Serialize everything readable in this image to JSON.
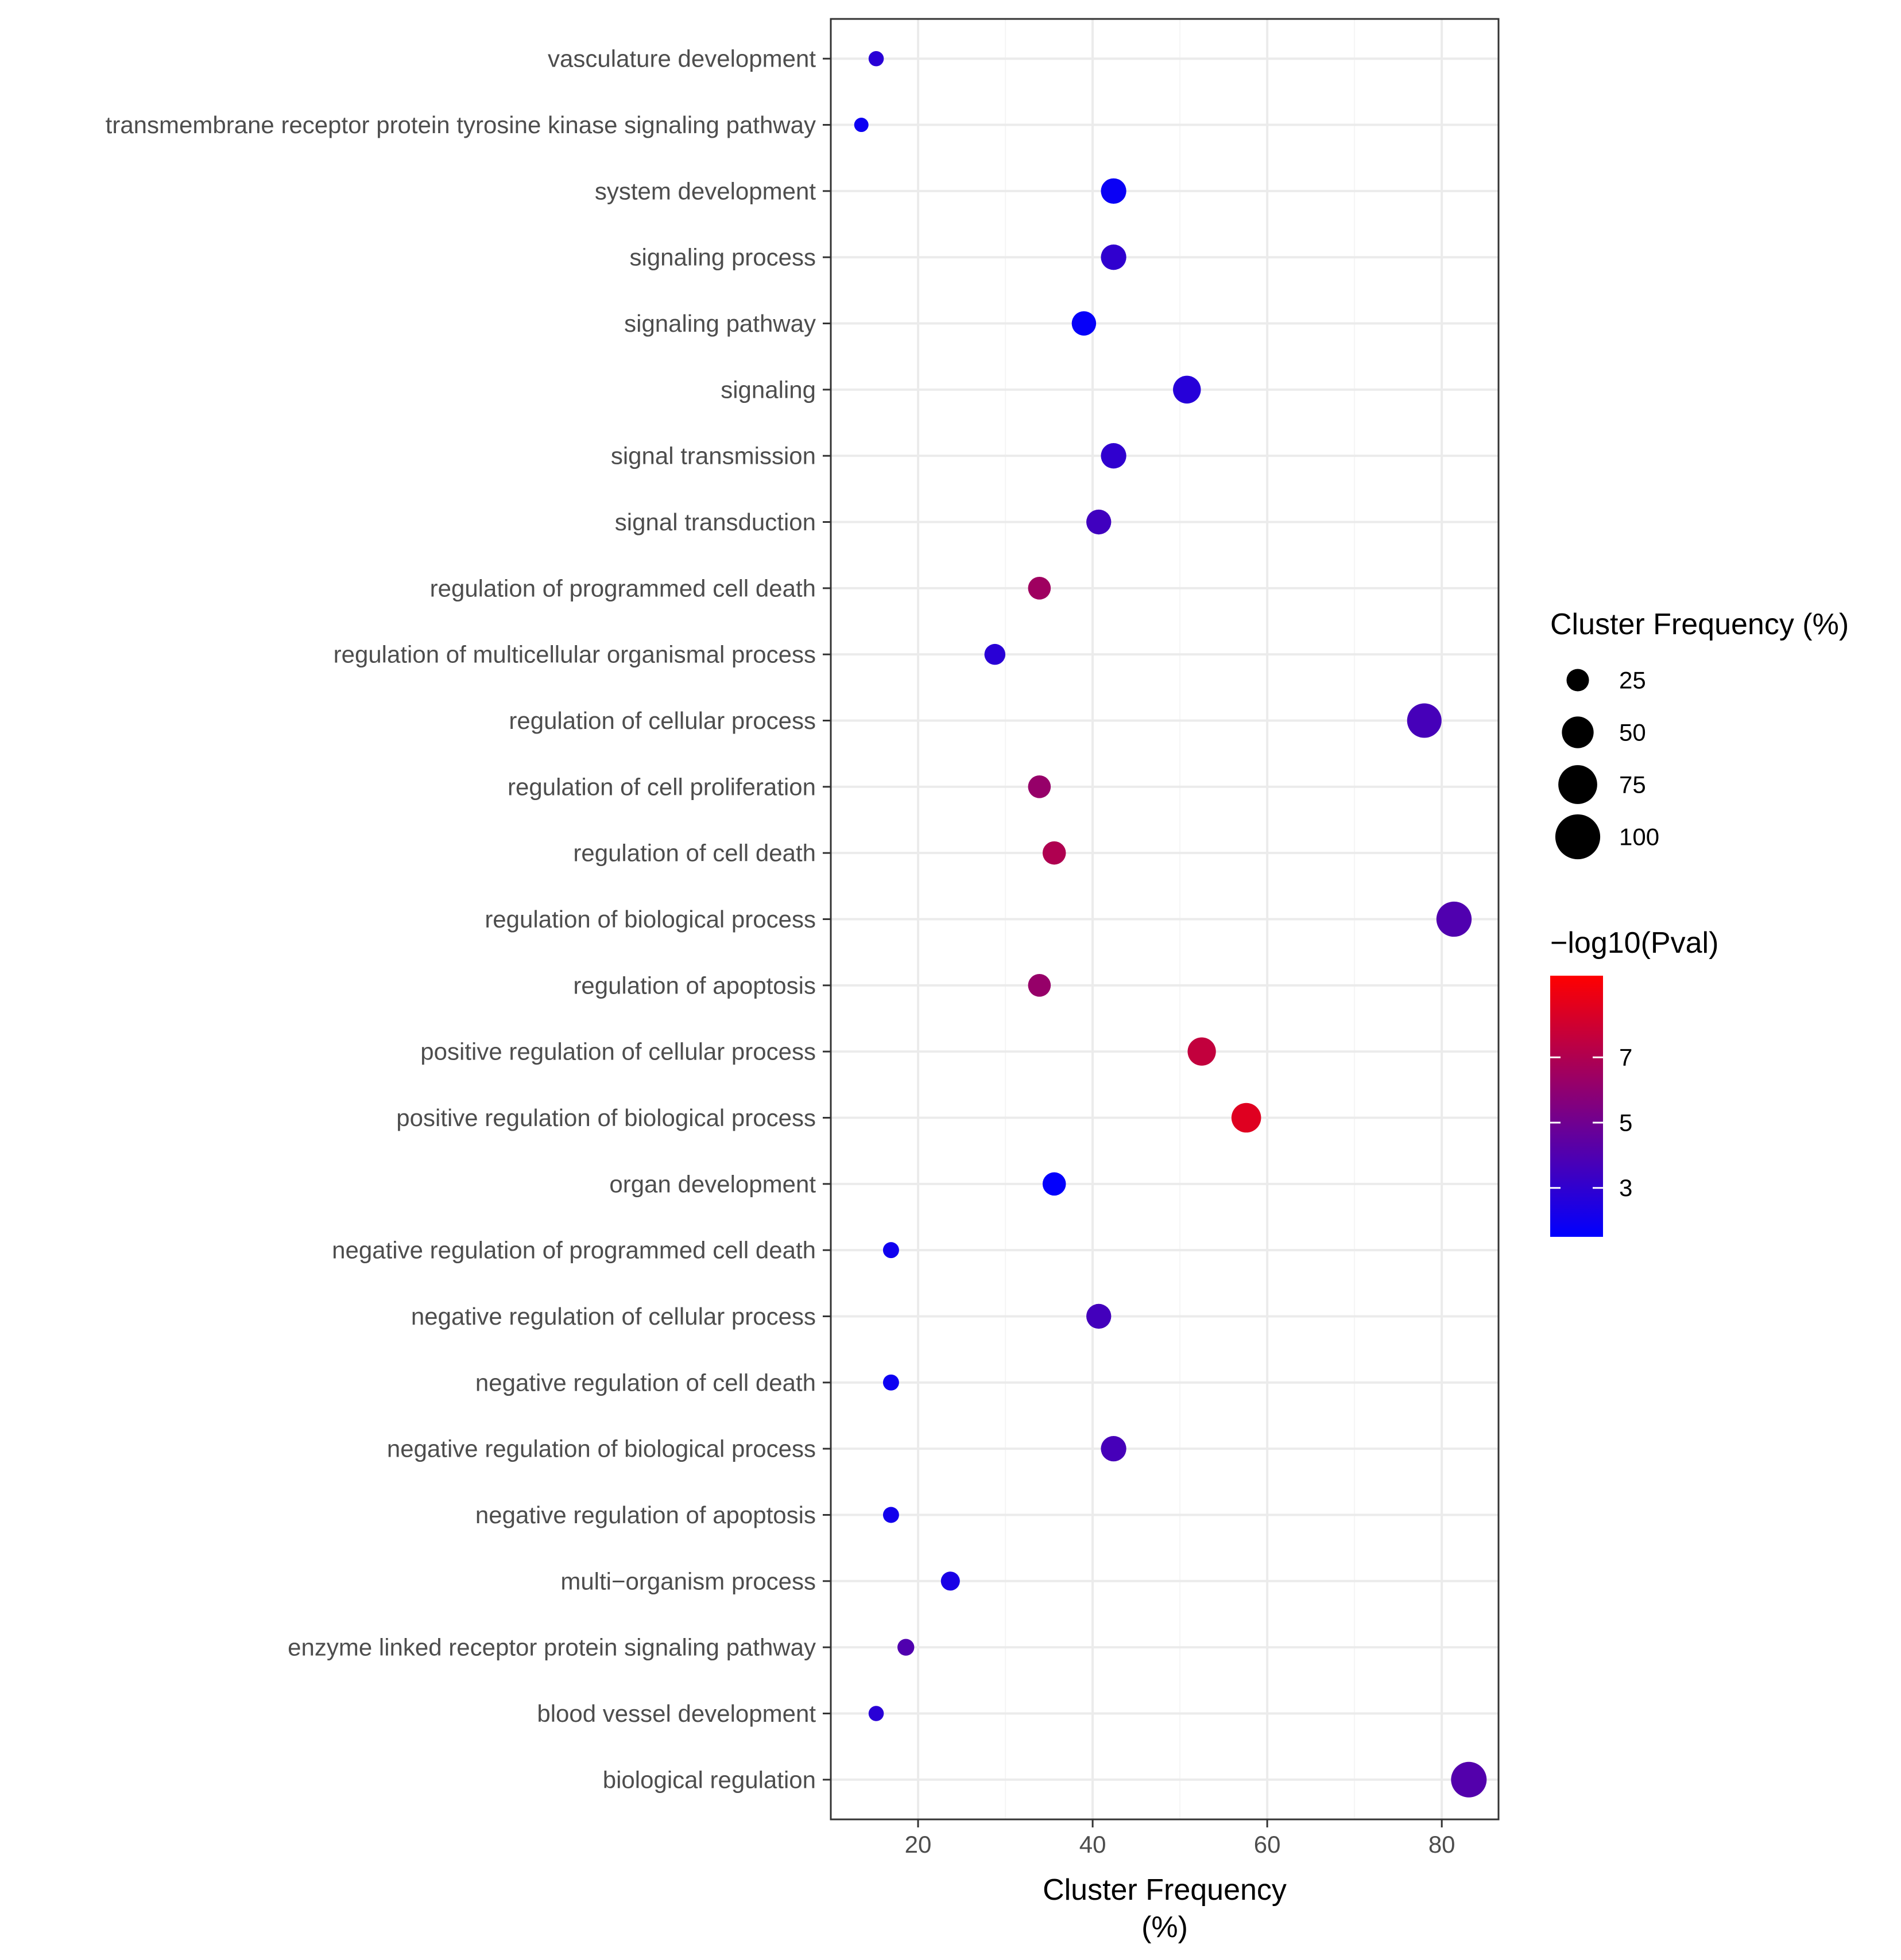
{
  "chart_data": {
    "type": "scatter",
    "xlabel_lines": [
      "Cluster Frequency",
      "(%)"
    ],
    "ylabel": "",
    "xlim": [
      10,
      86.5
    ],
    "xticks": [
      20,
      40,
      60,
      80
    ],
    "grid": true,
    "categories": [
      "vasculature development",
      "transmembrane receptor protein tyrosine kinase signaling pathway",
      "system development",
      "signaling process",
      "signaling pathway",
      "signaling",
      "signal transmission",
      "signal transduction",
      "regulation of programmed cell death",
      "regulation of multicellular organismal process",
      "regulation of cellular process",
      "regulation of cell proliferation",
      "regulation of cell death",
      "regulation of biological process",
      "regulation of apoptosis",
      "positive regulation of cellular process",
      "positive regulation of biological process",
      "organ development",
      "negative regulation of programmed cell death",
      "negative regulation of cellular process",
      "negative regulation of cell death",
      "negative regulation of biological process",
      "negative regulation of apoptosis",
      "multi−organism process",
      "enzyme linked receptor protein signaling pathway",
      "blood vessel development",
      "biological regulation"
    ],
    "points": [
      {
        "term": "vasculature development",
        "cluster_frequency": 15.2,
        "neg_log10_pval": 2.8
      },
      {
        "term": "transmembrane receptor protein tyrosine kinase signaling pathway",
        "cluster_frequency": 13.5,
        "neg_log10_pval": 1.9
      },
      {
        "term": "system development",
        "cluster_frequency": 42.4,
        "neg_log10_pval": 1.8
      },
      {
        "term": "signaling process",
        "cluster_frequency": 42.4,
        "neg_log10_pval": 3.0
      },
      {
        "term": "signaling pathway",
        "cluster_frequency": 39.0,
        "neg_log10_pval": 1.7
      },
      {
        "term": "signaling",
        "cluster_frequency": 50.8,
        "neg_log10_pval": 2.7
      },
      {
        "term": "signal transmission",
        "cluster_frequency": 42.4,
        "neg_log10_pval": 3.0
      },
      {
        "term": "signal transduction",
        "cluster_frequency": 40.7,
        "neg_log10_pval": 3.5
      },
      {
        "term": "regulation of programmed cell death",
        "cluster_frequency": 33.9,
        "neg_log10_pval": 6.5
      },
      {
        "term": "regulation of multicellular organismal process",
        "cluster_frequency": 28.8,
        "neg_log10_pval": 2.8
      },
      {
        "term": "regulation of cellular process",
        "cluster_frequency": 78.0,
        "neg_log10_pval": 3.7
      },
      {
        "term": "regulation of cell proliferation",
        "cluster_frequency": 33.9,
        "neg_log10_pval": 6.2
      },
      {
        "term": "regulation of cell death",
        "cluster_frequency": 35.6,
        "neg_log10_pval": 7.0
      },
      {
        "term": "regulation of biological process",
        "cluster_frequency": 81.4,
        "neg_log10_pval": 4.0
      },
      {
        "term": "regulation of apoptosis",
        "cluster_frequency": 33.9,
        "neg_log10_pval": 6.2
      },
      {
        "term": "positive regulation of cellular process",
        "cluster_frequency": 52.5,
        "neg_log10_pval": 7.6
      },
      {
        "term": "positive regulation of biological process",
        "cluster_frequency": 57.6,
        "neg_log10_pval": 8.5
      },
      {
        "term": "organ development",
        "cluster_frequency": 35.6,
        "neg_log10_pval": 1.6
      },
      {
        "term": "negative regulation of programmed cell death",
        "cluster_frequency": 16.9,
        "neg_log10_pval": 2.0
      },
      {
        "term": "negative regulation of cellular process",
        "cluster_frequency": 40.7,
        "neg_log10_pval": 3.6
      },
      {
        "term": "negative regulation of cell death",
        "cluster_frequency": 16.9,
        "neg_log10_pval": 1.9
      },
      {
        "term": "negative regulation of biological process",
        "cluster_frequency": 42.4,
        "neg_log10_pval": 3.7
      },
      {
        "term": "negative regulation of apoptosis",
        "cluster_frequency": 16.9,
        "neg_log10_pval": 2.1
      },
      {
        "term": "multi−organism process",
        "cluster_frequency": 23.7,
        "neg_log10_pval": 2.3
      },
      {
        "term": "enzyme linked receptor protein signaling pathway",
        "cluster_frequency": 18.6,
        "neg_log10_pval": 4.0
      },
      {
        "term": "blood vessel development",
        "cluster_frequency": 15.2,
        "neg_log10_pval": 2.8
      },
      {
        "term": "biological regulation",
        "cluster_frequency": 83.1,
        "neg_log10_pval": 4.1
      }
    ],
    "size_legend": {
      "title": "Cluster Frequency (%)",
      "breaks": [
        25,
        50,
        75,
        100
      ],
      "labels": [
        "25",
        "50",
        "75",
        "100"
      ],
      "position": "right"
    },
    "color_legend": {
      "title": "−log10(Pval)",
      "range": [
        1.5,
        9.5
      ],
      "breaks": [
        3,
        5,
        7
      ],
      "labels": [
        "3",
        "5",
        "7"
      ],
      "low_color": "#0000ff",
      "high_color": "#ff0000",
      "position": "right"
    },
    "colors": {
      "panel_border": "#333333",
      "grid_major": "#ebebeb",
      "grid_minor": "#f5f5f5",
      "size_key": "#000000"
    }
  }
}
